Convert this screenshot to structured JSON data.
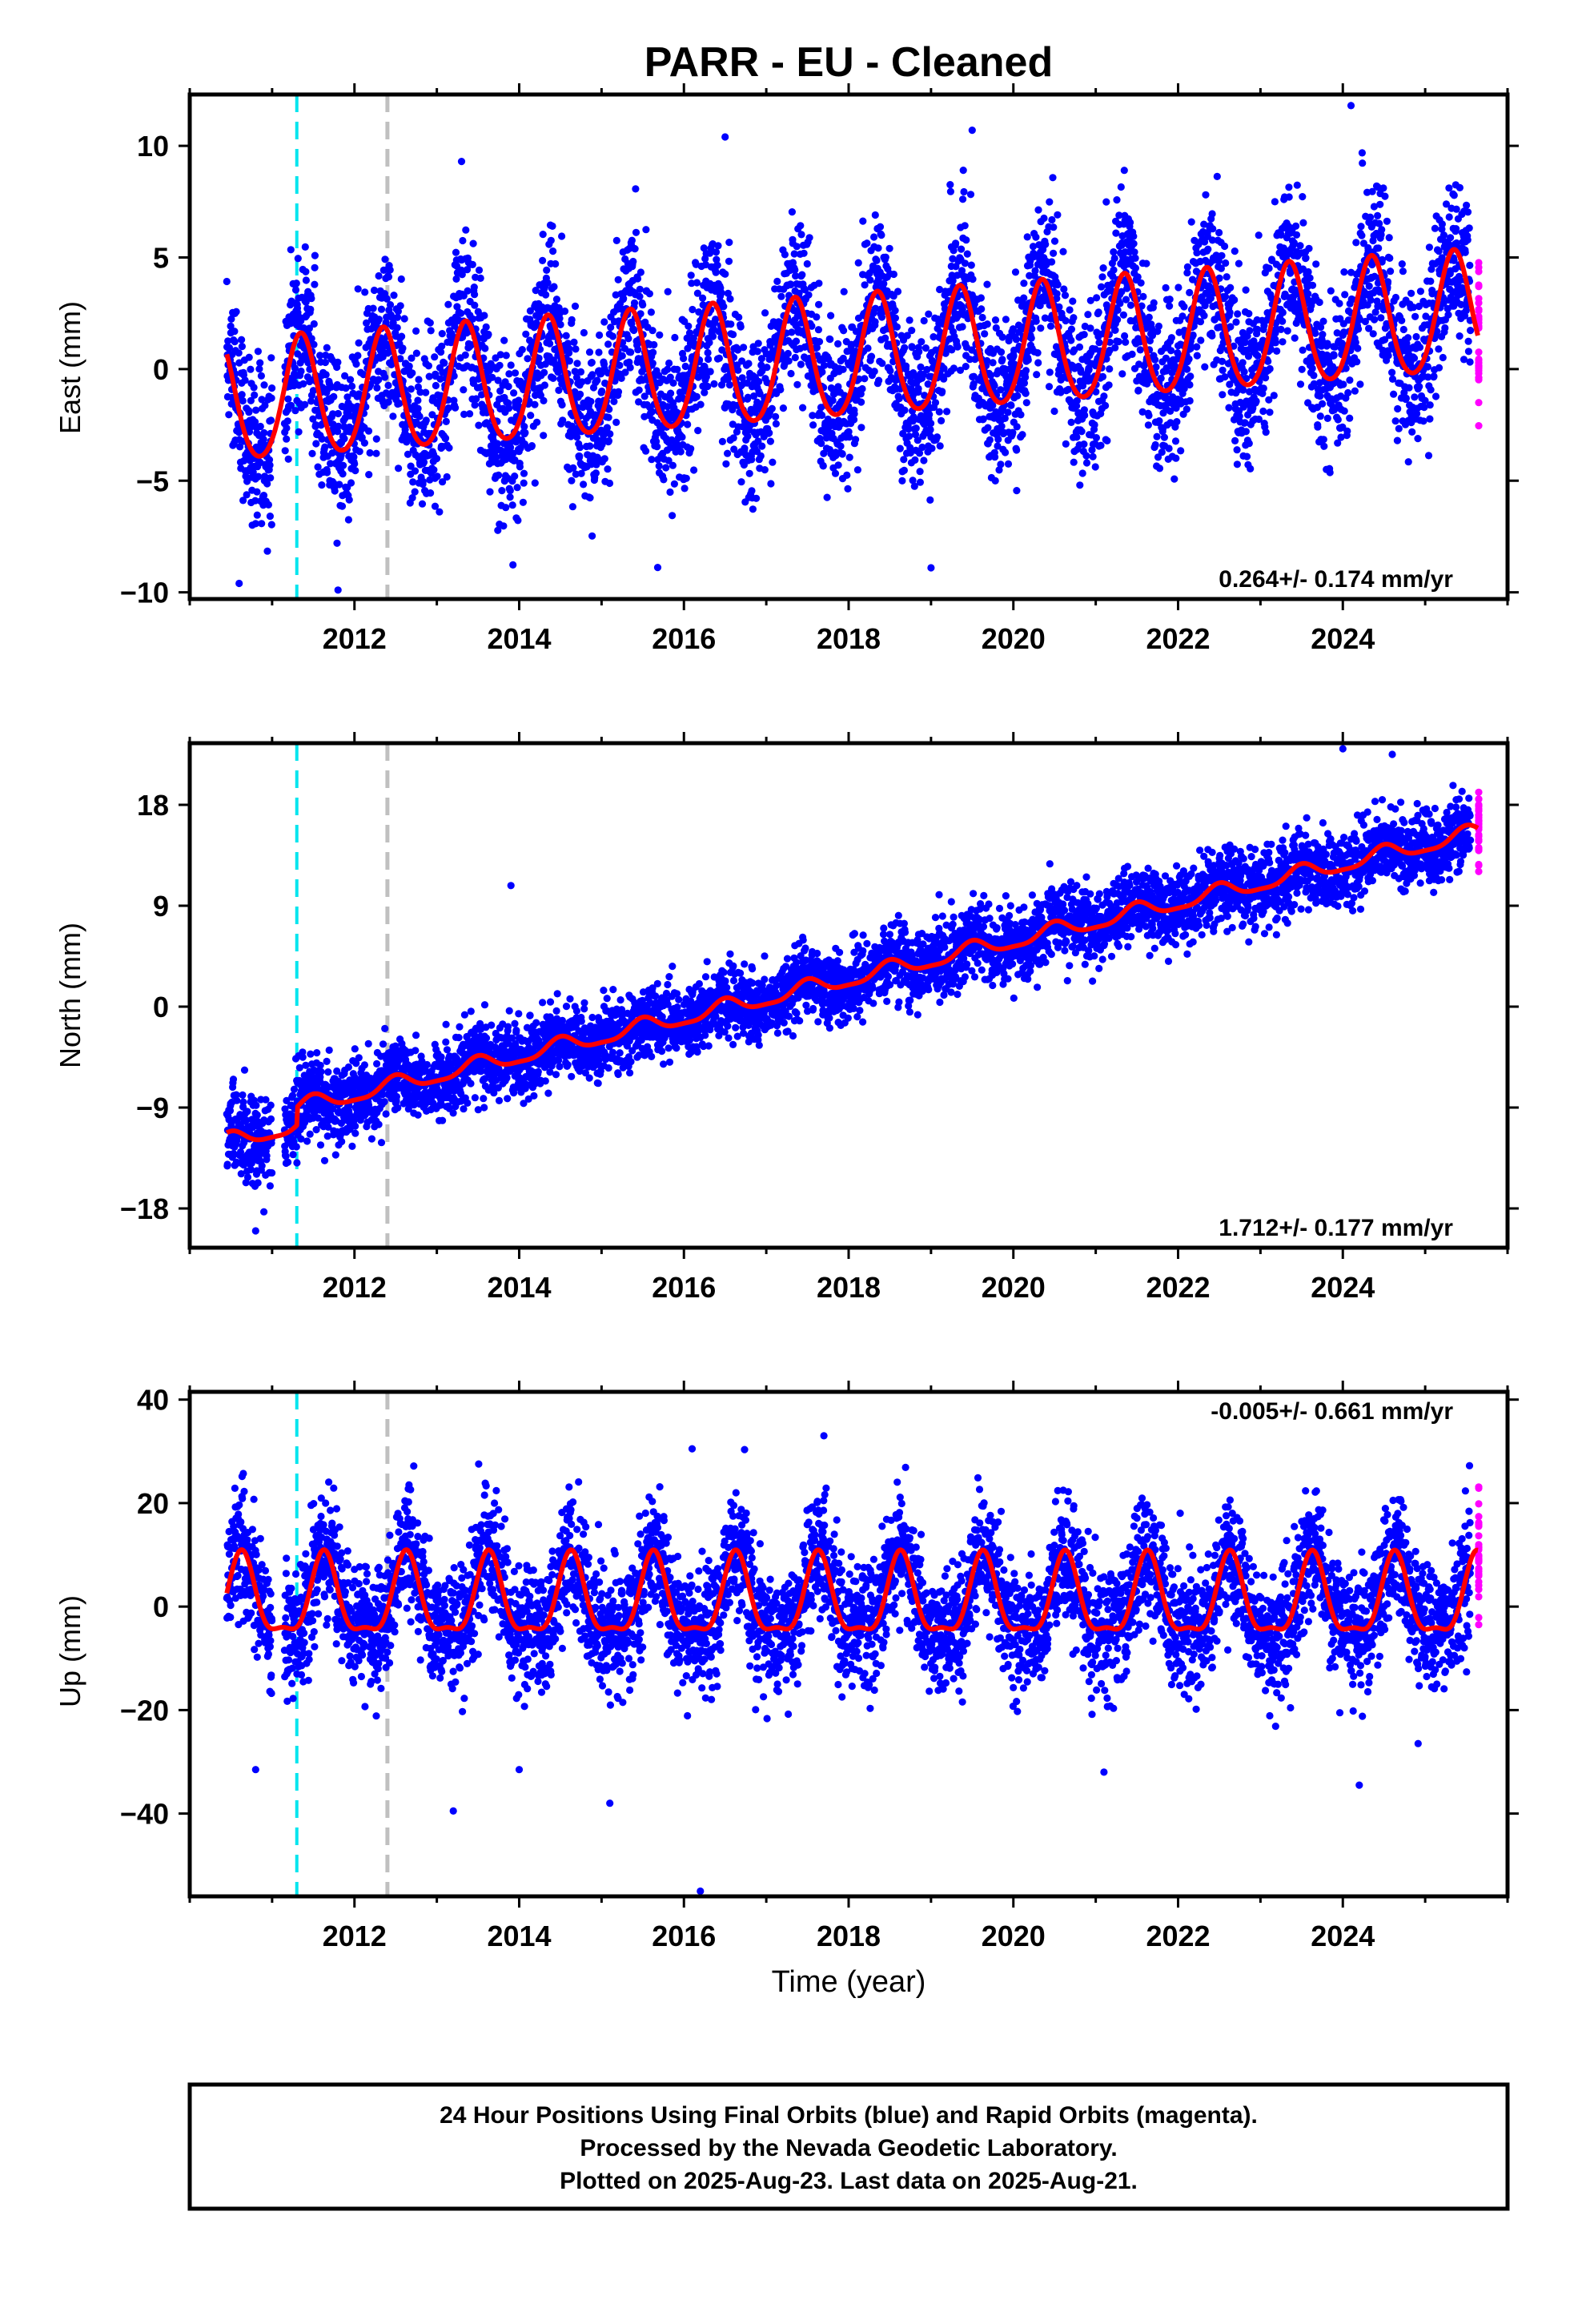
{
  "title": "PARR  - EU - Cleaned",
  "colors": {
    "final_orbits": "#0000ff",
    "rapid_orbits": "#ff00ff",
    "model": "#ff0000",
    "event_cyan": "#00e5ee",
    "event_gray": "#c0c0c0"
  },
  "xlabel": "Time (year)",
  "footer": {
    "line1": "24 Hour Positions Using Final Orbits (blue) and Rapid Orbits (magenta).",
    "line2": "Processed by the Nevada Geodetic Laboratory.",
    "line3": "Plotted on 2025-Aug-23. Last data on 2025-Aug-21."
  },
  "chart_data": [
    {
      "type": "scatter",
      "component": "east",
      "ylabel": "East (mm)",
      "rate_label": "0.264+/- 0.174 mm/yr",
      "xlim": [
        2010.0,
        2026.0
      ],
      "ylim": [
        -10.3,
        12.3
      ],
      "xticks": [
        2012,
        2014,
        2016,
        2018,
        2020,
        2022,
        2024
      ],
      "yticks": [
        -10,
        -5,
        0,
        5,
        10
      ],
      "final_orbits_range": [
        2010.45,
        2025.55
      ],
      "rapid_orbits_range": [
        2025.55,
        2025.64
      ],
      "offset_epochs": {
        "cyan": 2011.3,
        "gray": 2012.4
      },
      "model": {
        "trend_mm_per_yr": 0.264,
        "annual_amp": 2.7,
        "annual_peak": 2011.35,
        "semiannual_amp": 0.3,
        "ref_value_at_2010_5": -1.6,
        "ref_value_at_2025_5": 2.4,
        "offset_at_2011_3": 0.0
      },
      "scatter_sigma": 1.8,
      "outliers": [
        [
          2024.1,
          11.8
        ],
        [
          2016.5,
          10.4
        ],
        [
          2019.5,
          10.7
        ],
        [
          2013.3,
          9.3
        ],
        [
          2010.6,
          -9.6
        ],
        [
          2011.8,
          -9.9
        ],
        [
          2019.0,
          -8.9
        ]
      ]
    },
    {
      "type": "scatter",
      "component": "north",
      "ylabel": "North (mm)",
      "rate_label": "1.712+/- 0.177 mm/yr",
      "xlim": [
        2010.0,
        2026.0
      ],
      "ylim": [
        -21.5,
        23.5
      ],
      "xticks": [
        2012,
        2014,
        2016,
        2018,
        2020,
        2022,
        2024
      ],
      "yticks": [
        -18,
        -9,
        0,
        9,
        18
      ],
      "final_orbits_range": [
        2010.45,
        2025.55
      ],
      "rapid_orbits_range": [
        2025.55,
        2025.64
      ],
      "offset_epochs": {
        "cyan": 2011.3,
        "gray": 2012.4
      },
      "model": {
        "trend_mm_per_yr": 1.712,
        "annual_amp": 0.7,
        "annual_peak": 2011.5,
        "semiannual_amp": 0.2,
        "ref_value_at_2010_5": -12.0,
        "offset_at_2011_3": 1.6
      },
      "scatter_sigma": 1.6,
      "outliers": [
        [
          2013.9,
          10.8
        ],
        [
          2024.0,
          23.0
        ],
        [
          2024.6,
          22.5
        ],
        [
          2010.8,
          -20.0
        ],
        [
          2010.9,
          -18.3
        ]
      ]
    },
    {
      "type": "scatter",
      "component": "up",
      "ylabel": "Up (mm)",
      "rate_label": "-0.005+/- 0.661 mm/yr",
      "xlim": [
        2010.0,
        2026.0
      ],
      "ylim": [
        -56.0,
        41.5
      ],
      "xticks": [
        2012,
        2014,
        2016,
        2018,
        2020,
        2022,
        2024
      ],
      "yticks": [
        -40,
        -20,
        0,
        20,
        40
      ],
      "final_orbits_range": [
        2010.45,
        2025.55
      ],
      "rapid_orbits_range": [
        2025.55,
        2025.64
      ],
      "offset_epochs": {
        "cyan": 2011.3,
        "gray": 2012.4
      },
      "model": {
        "trend_mm_per_yr": -0.005,
        "annual_amp": 7.5,
        "annual_peak": 2010.63,
        "semiannual_amp": 2.5,
        "ref_value_at_2010_5": 1.0,
        "offset_at_2011_3": 0.0
      },
      "scatter_sigma": 6.0,
      "outliers": [
        [
          2016.2,
          -55.0
        ],
        [
          2013.2,
          -39.5
        ],
        [
          2015.1,
          -38.0
        ],
        [
          2010.8,
          -31.5
        ],
        [
          2014.0,
          -31.5
        ],
        [
          2021.1,
          -32.0
        ],
        [
          2024.2,
          -34.5
        ],
        [
          2017.7,
          33.0
        ],
        [
          2016.1,
          30.5
        ]
      ]
    }
  ]
}
